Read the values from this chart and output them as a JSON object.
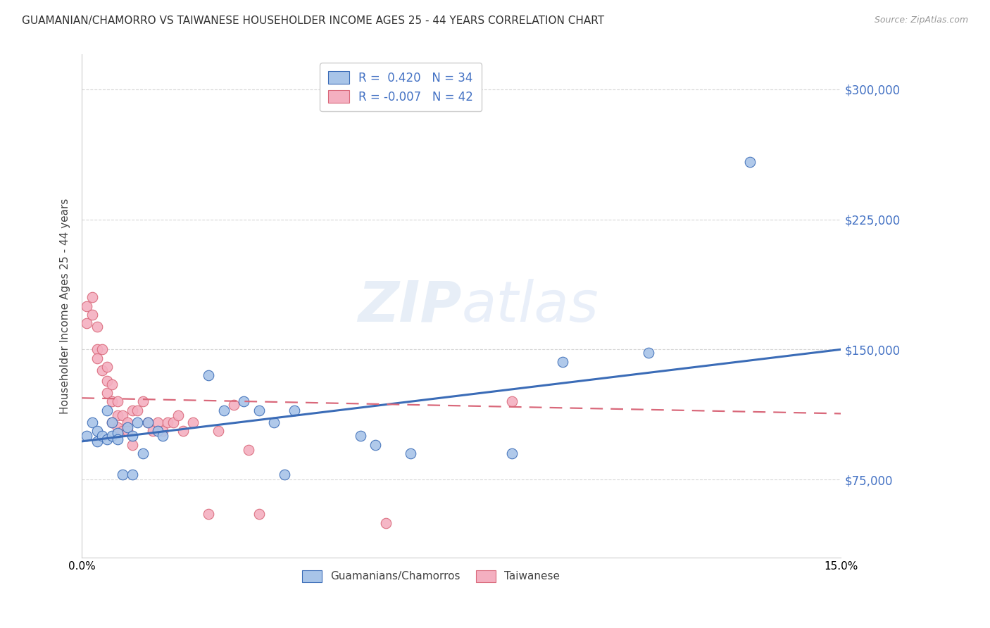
{
  "title": "GUAMANIAN/CHAMORRO VS TAIWANESE HOUSEHOLDER INCOME AGES 25 - 44 YEARS CORRELATION CHART",
  "source": "Source: ZipAtlas.com",
  "ylabel": "Householder Income Ages 25 - 44 years",
  "xlim": [
    0.0,
    0.15
  ],
  "ylim": [
    30000,
    320000
  ],
  "yticks": [
    75000,
    150000,
    225000,
    300000
  ],
  "ytick_labels": [
    "$75,000",
    "$150,000",
    "$225,000",
    "$300,000"
  ],
  "xticks": [
    0.0,
    0.03,
    0.06,
    0.09,
    0.12,
    0.15
  ],
  "xtick_labels": [
    "0.0%",
    "",
    "",
    "",
    "",
    "15.0%"
  ],
  "legend_blue_r": "R =  0.420",
  "legend_blue_n": "N = 34",
  "legend_pink_r": "R = -0.007",
  "legend_pink_n": "N = 42",
  "blue_color": "#a8c4e8",
  "pink_color": "#f4afc0",
  "line_blue": "#3b6cb7",
  "line_pink": "#d9687a",
  "label_color": "#4472c4",
  "watermark_color": "#d0dff0",
  "guamanian_x": [
    0.001,
    0.002,
    0.003,
    0.003,
    0.004,
    0.005,
    0.005,
    0.006,
    0.006,
    0.007,
    0.007,
    0.008,
    0.009,
    0.01,
    0.01,
    0.011,
    0.012,
    0.013,
    0.015,
    0.016,
    0.025,
    0.028,
    0.032,
    0.035,
    0.038,
    0.04,
    0.042,
    0.055,
    0.058,
    0.065,
    0.085,
    0.095,
    0.112,
    0.132
  ],
  "guamanian_y": [
    100000,
    108000,
    103000,
    97000,
    100000,
    98000,
    115000,
    100000,
    108000,
    102000,
    98000,
    78000,
    105000,
    100000,
    78000,
    108000,
    90000,
    108000,
    103000,
    100000,
    135000,
    115000,
    120000,
    115000,
    108000,
    78000,
    115000,
    100000,
    95000,
    90000,
    90000,
    143000,
    148000,
    258000
  ],
  "taiwanese_x": [
    0.001,
    0.001,
    0.002,
    0.002,
    0.003,
    0.003,
    0.003,
    0.004,
    0.004,
    0.005,
    0.005,
    0.005,
    0.006,
    0.006,
    0.006,
    0.007,
    0.007,
    0.007,
    0.008,
    0.008,
    0.009,
    0.009,
    0.01,
    0.01,
    0.011,
    0.012,
    0.013,
    0.014,
    0.015,
    0.016,
    0.017,
    0.018,
    0.019,
    0.02,
    0.022,
    0.025,
    0.027,
    0.03,
    0.033,
    0.035,
    0.06,
    0.085
  ],
  "taiwanese_y": [
    175000,
    165000,
    180000,
    170000,
    163000,
    150000,
    145000,
    150000,
    138000,
    140000,
    132000,
    125000,
    130000,
    120000,
    108000,
    120000,
    112000,
    105000,
    112000,
    103000,
    108000,
    103000,
    115000,
    95000,
    115000,
    120000,
    108000,
    103000,
    108000,
    103000,
    108000,
    108000,
    112000,
    103000,
    108000,
    55000,
    103000,
    118000,
    92000,
    55000,
    50000,
    120000
  ],
  "blue_line_x0": 0.0,
  "blue_line_y0": 97000,
  "blue_line_x1": 0.15,
  "blue_line_y1": 150000,
  "pink_line_x0": 0.0,
  "pink_line_y0": 122000,
  "pink_line_x1": 0.15,
  "pink_line_y1": 113000
}
